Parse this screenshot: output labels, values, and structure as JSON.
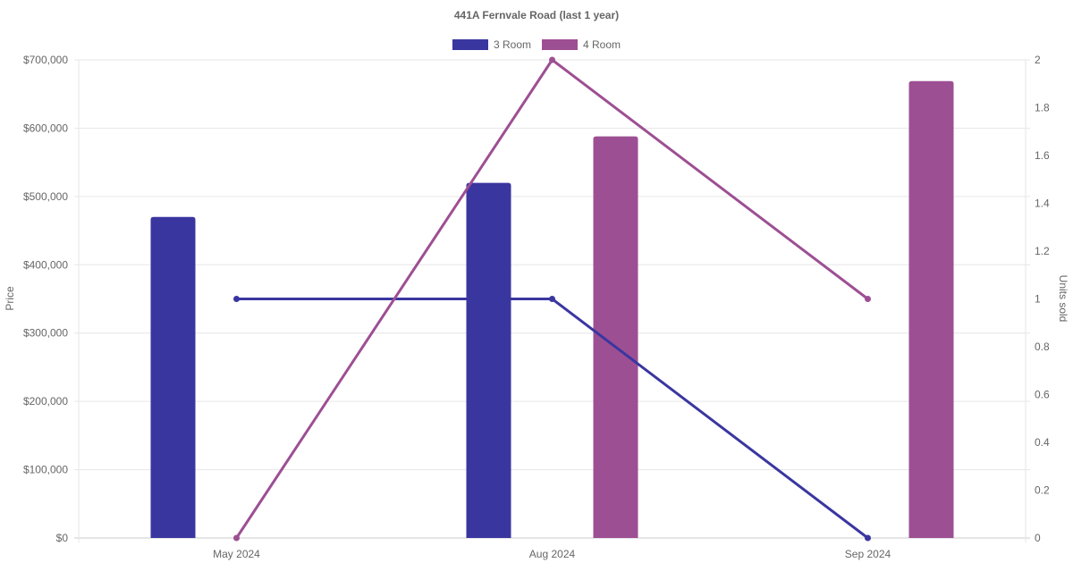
{
  "chart_data": {
    "type": "bar",
    "title": "441A Fernvale Road (last 1 year)",
    "categories": [
      "May 2024",
      "Aug 2024",
      "Sep 2024"
    ],
    "y_left": {
      "label": "Price",
      "min": 0,
      "max": 700000,
      "ticks": [
        "$0",
        "$100,000",
        "$200,000",
        "$300,000",
        "$400,000",
        "$500,000",
        "$600,000",
        "$700,000"
      ]
    },
    "y_right": {
      "label": "Units sold",
      "min": 0,
      "max": 2,
      "ticks": [
        "0",
        "0.2",
        "0.4",
        "0.6",
        "0.8",
        "1",
        "1.2",
        "1.4",
        "1.6",
        "1.8",
        "2"
      ]
    },
    "legend_position": "top-center",
    "grid": true,
    "series": [
      {
        "name": "3 Room",
        "color": "#3a36a0",
        "price": [
          470000,
          520000,
          null
        ],
        "units_sold": [
          1,
          1,
          0
        ]
      },
      {
        "name": "4 Room",
        "color": "#9d4f93",
        "price": [
          null,
          588000,
          669000
        ],
        "units_sold": [
          0,
          2,
          1
        ]
      }
    ]
  }
}
